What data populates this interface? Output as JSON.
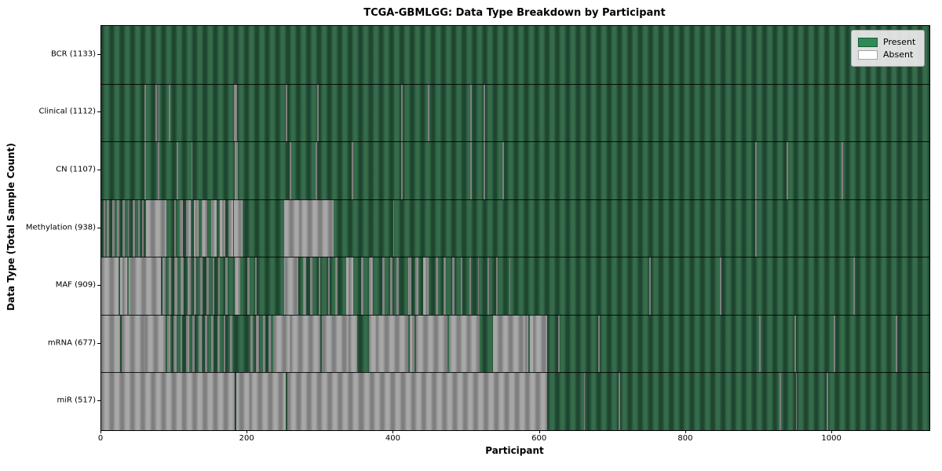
{
  "chart_data": {
    "type": "heatmap",
    "title": "TCGA-GBMLGG: Data Type Breakdown by Participant",
    "xlabel": "Participant",
    "ylabel": "Data Type (Total Sample Count)",
    "x_ticks": [
      0,
      200,
      400,
      600,
      800,
      1000
    ],
    "x_max": 1133,
    "grid": false,
    "legend": {
      "position": "upper right",
      "items": [
        {
          "name": "present",
          "label": "Present",
          "color": "#2e8b57"
        },
        {
          "name": "absent",
          "label": "Absent",
          "color": "#ffffff"
        }
      ]
    },
    "colors": {
      "present_fill": "#2e8b57",
      "absent_fill": "#ffffff",
      "present_rib_dark": "#1d452f",
      "present_rib_light": "#366c4b",
      "absent_rib_dark": "#7e7e7e",
      "absent_rib_light": "#a8a8a8"
    },
    "rows": [
      {
        "data_type": "BCR",
        "label": "BCR (1133)",
        "count": 1133,
        "absent_ranges": []
      },
      {
        "data_type": "Clinical",
        "label": "Clinical (1112)",
        "count": 1112,
        "absent_ranges": [
          [
            59,
            61
          ],
          [
            74,
            76
          ],
          [
            78,
            80
          ],
          [
            92,
            94
          ],
          [
            182,
            186
          ],
          [
            252,
            254
          ],
          [
            295,
            297
          ],
          [
            410,
            412
          ],
          [
            447,
            449
          ],
          [
            505,
            507
          ],
          [
            523,
            525
          ]
        ]
      },
      {
        "data_type": "CN",
        "label": "CN (1107)",
        "count": 1107,
        "absent_ranges": [
          [
            59,
            61
          ],
          [
            77,
            79
          ],
          [
            103,
            105
          ],
          [
            123,
            125
          ],
          [
            183,
            187
          ],
          [
            258,
            260
          ],
          [
            293,
            295
          ],
          [
            343,
            345
          ],
          [
            410,
            412
          ],
          [
            505,
            507
          ],
          [
            523,
            525
          ],
          [
            549,
            551
          ],
          [
            895,
            897
          ],
          [
            938,
            940
          ],
          [
            1013,
            1015
          ]
        ]
      },
      {
        "data_type": "Methylation",
        "label": "Methylation (938)",
        "count": 938,
        "absent_ranges": [
          [
            3,
            5
          ],
          [
            8,
            11
          ],
          [
            15,
            18
          ],
          [
            22,
            25
          ],
          [
            29,
            32
          ],
          [
            36,
            38
          ],
          [
            43,
            46
          ],
          [
            50,
            53
          ],
          [
            56,
            58
          ],
          [
            61,
            89
          ],
          [
            100,
            102
          ],
          [
            107,
            112
          ],
          [
            116,
            122
          ],
          [
            127,
            133
          ],
          [
            138,
            145
          ],
          [
            150,
            158
          ],
          [
            162,
            170
          ],
          [
            174,
            180
          ],
          [
            182,
            193
          ],
          [
            250,
            318
          ],
          [
            399,
            401
          ],
          [
            895,
            897
          ]
        ]
      },
      {
        "data_type": "MAF",
        "label": "MAF (909)",
        "count": 909,
        "absent_ranges": [
          [
            0,
            24
          ],
          [
            26,
            35
          ],
          [
            38,
            82
          ],
          [
            84,
            88
          ],
          [
            92,
            96
          ],
          [
            100,
            104
          ],
          [
            109,
            113
          ],
          [
            118,
            122
          ],
          [
            127,
            130
          ],
          [
            135,
            139
          ],
          [
            144,
            147
          ],
          [
            152,
            155
          ],
          [
            160,
            162
          ],
          [
            170,
            173
          ],
          [
            183,
            190
          ],
          [
            200,
            203
          ],
          [
            210,
            213
          ],
          [
            250,
            270
          ],
          [
            276,
            280
          ],
          [
            286,
            289
          ],
          [
            297,
            300
          ],
          [
            310,
            313
          ],
          [
            320,
            323
          ],
          [
            335,
            345
          ],
          [
            356,
            359
          ],
          [
            366,
            372
          ],
          [
            385,
            388
          ],
          [
            395,
            398
          ],
          [
            404,
            407
          ],
          [
            420,
            424
          ],
          [
            430,
            434
          ],
          [
            440,
            448
          ],
          [
            458,
            461
          ],
          [
            468,
            472
          ],
          [
            480,
            483
          ],
          [
            492,
            494
          ],
          [
            504,
            506
          ],
          [
            515,
            517
          ],
          [
            528,
            530
          ],
          [
            540,
            542
          ],
          [
            558,
            560
          ],
          [
            750,
            752
          ],
          [
            846,
            848
          ],
          [
            1029,
            1031
          ]
        ]
      },
      {
        "data_type": "mRNA",
        "label": "mRNA (677)",
        "count": 677,
        "absent_ranges": [
          [
            0,
            26
          ],
          [
            28,
            88
          ],
          [
            90,
            94
          ],
          [
            99,
            103
          ],
          [
            108,
            111
          ],
          [
            116,
            120
          ],
          [
            125,
            128
          ],
          [
            133,
            137
          ],
          [
            142,
            145
          ],
          [
            150,
            154
          ],
          [
            159,
            162
          ],
          [
            167,
            170
          ],
          [
            176,
            179
          ],
          [
            204,
            207
          ],
          [
            212,
            216
          ],
          [
            221,
            224
          ],
          [
            229,
            232
          ],
          [
            235,
            300
          ],
          [
            302,
            350
          ],
          [
            366,
            420
          ],
          [
            422,
            429
          ],
          [
            431,
            474
          ],
          [
            476,
            518
          ],
          [
            536,
            584
          ],
          [
            586,
            610
          ],
          [
            625,
            627
          ],
          [
            680,
            682
          ],
          [
            900,
            902
          ],
          [
            948,
            950
          ],
          [
            1002,
            1004
          ],
          [
            1087,
            1089
          ]
        ]
      },
      {
        "data_type": "miR",
        "label": "miR (517)",
        "count": 517,
        "absent_ranges": [
          [
            0,
            183
          ],
          [
            185,
            252
          ],
          [
            254,
            610
          ],
          [
            660,
            662
          ],
          [
            708,
            710
          ],
          [
            928,
            930
          ],
          [
            950,
            952
          ],
          [
            992,
            994
          ]
        ]
      }
    ]
  }
}
